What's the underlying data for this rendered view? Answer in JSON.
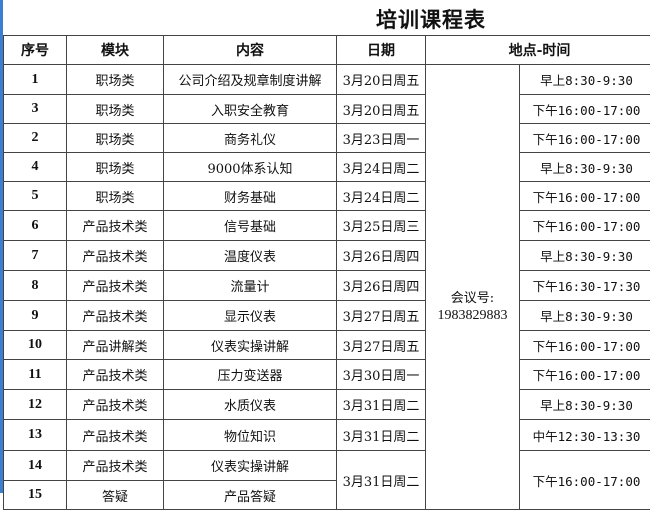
{
  "title": "培训课程表",
  "headers": [
    "序号",
    "模块",
    "内容",
    "日期",
    "地点-时间"
  ],
  "meeting": {
    "label": "会议号:",
    "number": "1983829883"
  },
  "rows": [
    {
      "no": "1",
      "module": "职场类",
      "content": "公司介绍及规章制度讲解",
      "date": "3月20日周五",
      "time": "早上8:30-9:30"
    },
    {
      "no": "3",
      "module": "职场类",
      "content": "入职安全教育",
      "date": "3月20日周五",
      "time": "下午16:00-17:00"
    },
    {
      "no": "2",
      "module": "职场类",
      "content": "商务礼仪",
      "date": "3月23日周一",
      "time": "下午16:00-17:00"
    },
    {
      "no": "4",
      "module": "职场类",
      "content": "9000体系认知",
      "date": "3月24日周二",
      "time": "早上8:30-9:30"
    },
    {
      "no": "5",
      "module": "职场类",
      "content": "财务基础",
      "date": "3月24日周二",
      "time": "下午16:00-17:00"
    },
    {
      "no": "6",
      "module": "产品技术类",
      "content": "信号基础",
      "date": "3月25日周三",
      "time": "下午16:00-17:00"
    },
    {
      "no": "7",
      "module": "产品技术类",
      "content": "温度仪表",
      "date": "3月26日周四",
      "time": "早上8:30-9:30"
    },
    {
      "no": "8",
      "module": "产品技术类",
      "content": "流量计",
      "date": "3月26日周四",
      "time": "下午16:30-17:30"
    },
    {
      "no": "9",
      "module": "产品技术类",
      "content": "显示仪表",
      "date": "3月27日周五",
      "time": "早上8:30-9:30"
    },
    {
      "no": "10",
      "module": "产品讲解类",
      "content": "仪表实操讲解",
      "date": "3月27日周五",
      "time": "下午16:00-17:00"
    },
    {
      "no": "11",
      "module": "产品技术类",
      "content": "压力变送器",
      "date": "3月30日周一",
      "time": "下午16:00-17:00"
    },
    {
      "no": "12",
      "module": "产品技术类",
      "content": "水质仪表",
      "date": "3月31日周二",
      "time": "早上8:30-9:30"
    },
    {
      "no": "13",
      "module": "产品技术类",
      "content": "物位知识",
      "date": "3月31日周二",
      "time": "中午12:30-13:30"
    },
    {
      "no": "14",
      "module": "产品技术类",
      "content": "仪表实操讲解",
      "date": "3月31日周二",
      "time": "下午16:00-17:00"
    },
    {
      "no": "15",
      "module": "答疑",
      "content": "产品答疑"
    }
  ]
}
